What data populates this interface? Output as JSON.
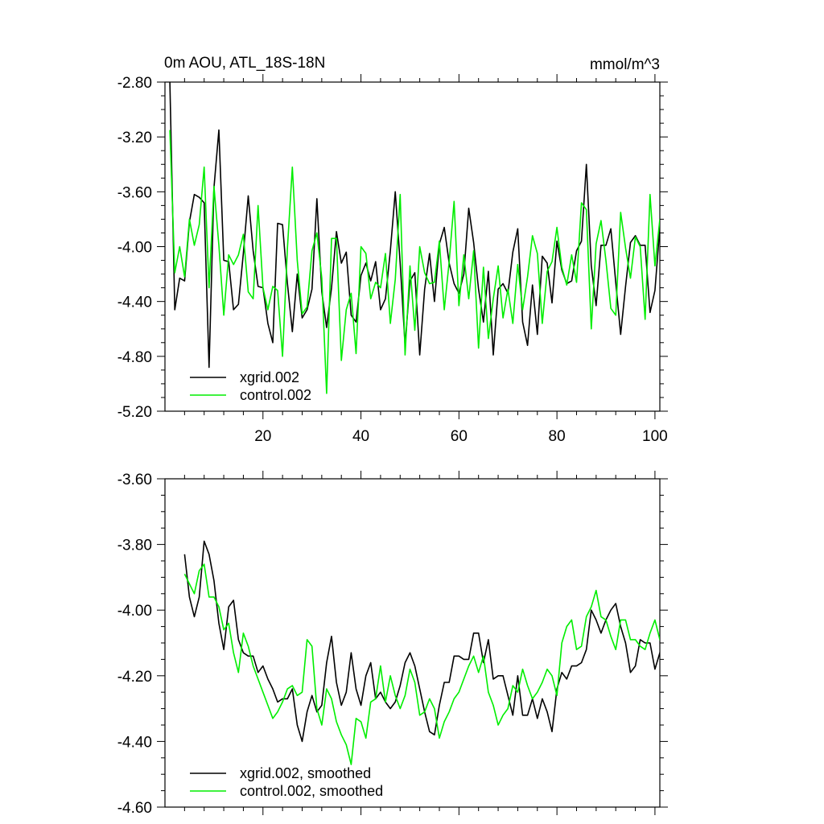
{
  "colors": {
    "series1": "#000000",
    "series2": "#00ee00",
    "background": "#ffffff"
  },
  "chart_data": [
    {
      "type": "line",
      "title": "0m AOU, ATL_18S-18N",
      "units": "mmol/m^3",
      "xlim": [
        0,
        101
      ],
      "ylim": [
        -5.2,
        -2.8
      ],
      "yticks": [
        "-2.80",
        "-3.20",
        "-3.60",
        "-4.00",
        "-4.40",
        "-4.80",
        "-5.20"
      ],
      "xticks": [
        "20",
        "40",
        "60",
        "80",
        "100"
      ],
      "legend_position": "bottom-left",
      "series": [
        {
          "name": "xgrid.002",
          "color": "#000000",
          "values": [
            -2.8,
            -4.46,
            -4.23,
            -4.25,
            -3.82,
            -3.62,
            -3.64,
            -3.68,
            -4.88,
            -3.57,
            -3.15,
            -4.1,
            -4.11,
            -4.46,
            -4.42,
            -4.05,
            -3.63,
            -4.03,
            -4.29,
            -4.3,
            -4.56,
            -4.7,
            -3.83,
            -3.84,
            -4.27,
            -4.62,
            -4.2,
            -4.52,
            -4.46,
            -4.31,
            -3.65,
            -4.33,
            -4.59,
            -4.3,
            -3.89,
            -4.12,
            -4.04,
            -4.5,
            -4.55,
            -4.21,
            -4.12,
            -4.25,
            -4.11,
            -4.46,
            -4.38,
            -4.03,
            -3.6,
            -4.12,
            -4.72,
            -4.25,
            -4.19,
            -4.79,
            -4.31,
            -4.05,
            -4.4,
            -3.98,
            -3.86,
            -4.12,
            -4.27,
            -4.34,
            -4.2,
            -3.72,
            -3.97,
            -4.31,
            -4.55,
            -4.18,
            -4.79,
            -4.31,
            -4.27,
            -4.34,
            -4.04,
            -3.87,
            -4.55,
            -4.72,
            -4.28,
            -4.64,
            -4.07,
            -4.12,
            -4.41,
            -3.96,
            -4.17,
            -4.27,
            -4.25,
            -4.03,
            -3.96,
            -3.4,
            -4.14,
            -4.43,
            -3.99,
            -3.99,
            -3.87,
            -4.26,
            -4.64,
            -4.29,
            -3.97,
            -3.92,
            -3.99,
            -3.99,
            -4.48,
            -4.32,
            -3.86
          ]
        },
        {
          "name": "control.002",
          "color": "#00ee00",
          "values": [
            -3.15,
            -4.19,
            -4.0,
            -4.22,
            -3.8,
            -3.99,
            -3.84,
            -3.42,
            -4.3,
            -3.56,
            -3.99,
            -4.5,
            -4.06,
            -4.13,
            -4.06,
            -3.91,
            -4.33,
            -4.38,
            -3.7,
            -4.3,
            -4.46,
            -4.29,
            -4.32,
            -4.8,
            -4.01,
            -3.42,
            -4.1,
            -4.49,
            -4.44,
            -4.03,
            -3.9,
            -4.23,
            -5.07,
            -3.94,
            -3.94,
            -4.83,
            -4.46,
            -4.34,
            -4.78,
            -4.0,
            -4.05,
            -4.38,
            -4.26,
            -4.3,
            -4.05,
            -4.56,
            -4.24,
            -3.62,
            -4.79,
            -4.14,
            -4.61,
            -4.0,
            -4.19,
            -4.27,
            -4.26,
            -3.96,
            -4.46,
            -4.11,
            -3.67,
            -4.43,
            -4.06,
            -4.38,
            -4.03,
            -4.74,
            -4.15,
            -4.67,
            -4.38,
            -4.14,
            -4.52,
            -4.31,
            -4.56,
            -4.13,
            -4.46,
            -4.22,
            -3.92,
            -4.05,
            -4.56,
            -4.18,
            -4.11,
            -3.86,
            -4.15,
            -4.28,
            -4.06,
            -4.26,
            -3.68,
            -3.73,
            -4.6,
            -3.98,
            -3.81,
            -4.1,
            -4.45,
            -4.5,
            -3.75,
            -4.01,
            -4.23,
            -3.93,
            -4.0,
            -4.53,
            -3.62,
            -4.14,
            -3.8
          ]
        }
      ]
    },
    {
      "type": "line",
      "title": "",
      "xlim": [
        0,
        101
      ],
      "ylim": [
        -4.6,
        -3.6
      ],
      "yticks": [
        "-3.60",
        "-3.80",
        "-4.00",
        "-4.20",
        "-4.40",
        "-4.60"
      ],
      "legend_position": "bottom-left",
      "series": [
        {
          "name": "xgrid.002, smoothed",
          "color": "#000000",
          "x_start": 4,
          "values": [
            -3.83,
            -3.96,
            -4.02,
            -3.96,
            -3.79,
            -3.83,
            -3.91,
            -4.04,
            -4.12,
            -3.99,
            -3.97,
            -4.09,
            -4.13,
            -4.14,
            -4.14,
            -4.19,
            -4.17,
            -4.21,
            -4.24,
            -4.28,
            -4.27,
            -4.27,
            -4.24,
            -4.35,
            -4.4,
            -4.31,
            -4.26,
            -4.31,
            -4.29,
            -4.16,
            -4.08,
            -4.22,
            -4.29,
            -4.25,
            -4.13,
            -4.24,
            -4.29,
            -4.2,
            -4.16,
            -4.27,
            -4.25,
            -4.28,
            -4.3,
            -4.28,
            -4.23,
            -4.16,
            -4.13,
            -4.17,
            -4.24,
            -4.31,
            -4.37,
            -4.38,
            -4.29,
            -4.22,
            -4.22,
            -4.14,
            -4.14,
            -4.15,
            -4.15,
            -4.07,
            -4.07,
            -4.16,
            -4.09,
            -4.21,
            -4.2,
            -4.2,
            -4.26,
            -4.32,
            -4.2,
            -4.32,
            -4.32,
            -4.27,
            -4.33,
            -4.27,
            -4.31,
            -4.37,
            -4.24,
            -4.19,
            -4.21,
            -4.17,
            -4.17,
            -4.16,
            -4.12,
            -4.0,
            -4.03,
            -4.07,
            -4.03,
            -4.0,
            -3.98,
            -4.05,
            -4.1,
            -4.19,
            -4.17,
            -4.09,
            -4.1,
            -4.1,
            -4.18,
            -4.13,
            -4.07
          ]
        },
        {
          "name": "control.002, smoothed",
          "color": "#00ee00",
          "x_start": 4,
          "values": [
            -3.89,
            -3.92,
            -3.95,
            -3.88,
            -3.86,
            -3.96,
            -3.96,
            -3.99,
            -4.06,
            -4.04,
            -4.13,
            -4.19,
            -4.07,
            -4.11,
            -4.17,
            -4.21,
            -4.25,
            -4.29,
            -4.33,
            -4.31,
            -4.28,
            -4.24,
            -4.23,
            -4.26,
            -4.25,
            -4.09,
            -4.11,
            -4.3,
            -4.35,
            -4.24,
            -4.27,
            -4.34,
            -4.38,
            -4.41,
            -4.47,
            -4.33,
            -4.34,
            -4.39,
            -4.28,
            -4.27,
            -4.17,
            -4.28,
            -4.2,
            -4.26,
            -4.3,
            -4.26,
            -4.18,
            -4.22,
            -4.32,
            -4.31,
            -4.27,
            -4.3,
            -4.39,
            -4.34,
            -4.31,
            -4.27,
            -4.25,
            -4.21,
            -4.17,
            -4.14,
            -4.19,
            -4.14,
            -4.25,
            -4.29,
            -4.35,
            -4.32,
            -4.3,
            -4.23,
            -4.25,
            -4.18,
            -4.23,
            -4.27,
            -4.25,
            -4.22,
            -4.18,
            -4.2,
            -4.26,
            -4.1,
            -4.05,
            -4.03,
            -4.12,
            -4.11,
            -4.02,
            -3.99,
            -3.94,
            -4.02,
            -4.03,
            -4.08,
            -4.12,
            -4.03,
            -4.03,
            -4.09,
            -4.09,
            -4.11,
            -4.12,
            -4.07,
            -4.03,
            -4.09,
            -4.06
          ]
        }
      ]
    }
  ]
}
